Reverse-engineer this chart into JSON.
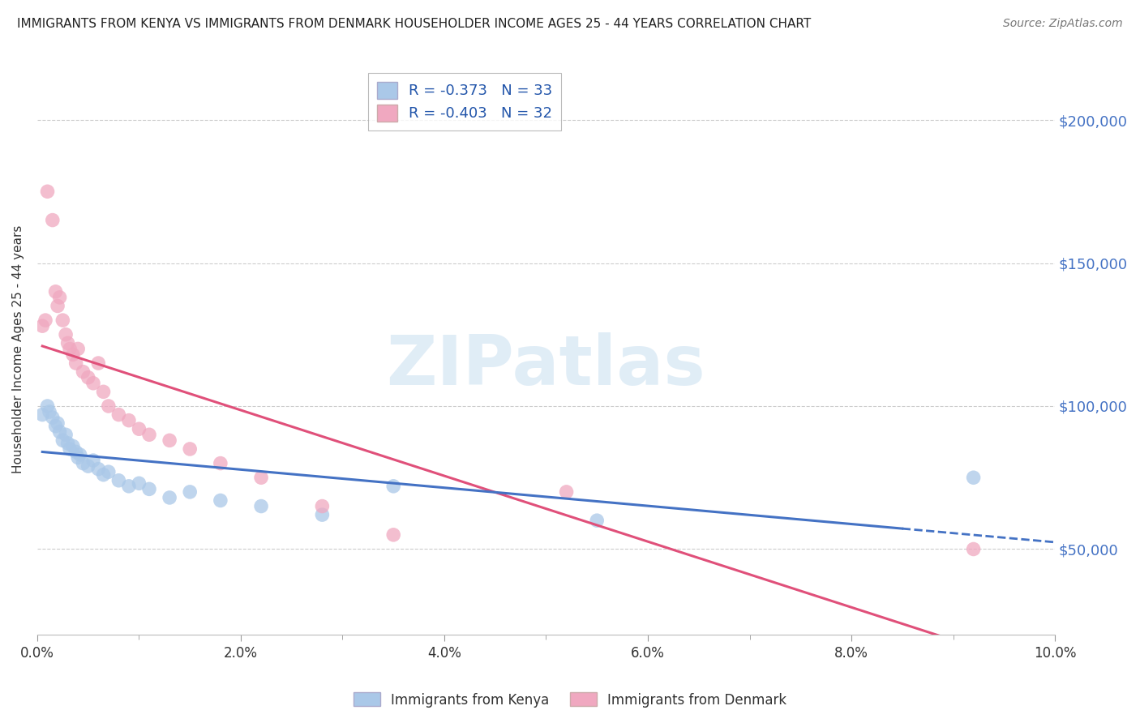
{
  "title": "IMMIGRANTS FROM KENYA VS IMMIGRANTS FROM DENMARK HOUSEHOLDER INCOME AGES 25 - 44 YEARS CORRELATION CHART",
  "source": "Source: ZipAtlas.com",
  "ylabel": "Householder Income Ages 25 - 44 years",
  "xlim": [
    0.0,
    10.0
  ],
  "ylim": [
    20000,
    220000
  ],
  "kenya_R": -0.373,
  "kenya_N": 33,
  "denmark_R": -0.403,
  "denmark_N": 32,
  "kenya_color": "#aac8e8",
  "denmark_color": "#f0a8c0",
  "kenya_line_color": "#4472c4",
  "denmark_line_color": "#e0507a",
  "kenya_x": [
    0.05,
    0.1,
    0.12,
    0.15,
    0.18,
    0.2,
    0.22,
    0.25,
    0.28,
    0.3,
    0.32,
    0.35,
    0.38,
    0.4,
    0.42,
    0.45,
    0.5,
    0.55,
    0.6,
    0.65,
    0.7,
    0.8,
    0.9,
    1.0,
    1.1,
    1.3,
    1.5,
    1.8,
    2.2,
    2.8,
    3.5,
    5.5,
    9.2
  ],
  "kenya_y": [
    97000,
    100000,
    98000,
    96000,
    93000,
    94000,
    91000,
    88000,
    90000,
    87000,
    85000,
    86000,
    84000,
    82000,
    83000,
    80000,
    79000,
    81000,
    78000,
    76000,
    77000,
    74000,
    72000,
    73000,
    71000,
    68000,
    70000,
    67000,
    65000,
    62000,
    72000,
    60000,
    75000
  ],
  "denmark_x": [
    0.05,
    0.08,
    0.1,
    0.15,
    0.18,
    0.2,
    0.22,
    0.25,
    0.28,
    0.3,
    0.32,
    0.35,
    0.38,
    0.4,
    0.45,
    0.5,
    0.55,
    0.6,
    0.65,
    0.7,
    0.8,
    0.9,
    1.0,
    1.1,
    1.3,
    1.5,
    1.8,
    2.2,
    2.8,
    3.5,
    5.2,
    9.2
  ],
  "denmark_y": [
    128000,
    130000,
    175000,
    165000,
    140000,
    135000,
    138000,
    130000,
    125000,
    122000,
    120000,
    118000,
    115000,
    120000,
    112000,
    110000,
    108000,
    115000,
    105000,
    100000,
    97000,
    95000,
    92000,
    90000,
    88000,
    85000,
    80000,
    75000,
    65000,
    55000,
    70000,
    50000
  ],
  "ytick_labels": [
    "$50,000",
    "$100,000",
    "$150,000",
    "$200,000"
  ],
  "ytick_values": [
    50000,
    100000,
    150000,
    200000
  ],
  "xtick_labels": [
    "0.0%",
    "2.0%",
    "4.0%",
    "6.0%",
    "8.0%",
    "10.0%"
  ],
  "xtick_values": [
    0,
    2,
    4,
    6,
    8,
    10
  ],
  "background_color": "#ffffff",
  "grid_color": "#cccccc",
  "right_ytick_color": "#4472c4",
  "legend_edge_color": "#aaaaaa",
  "title_fontsize": 11,
  "source_fontsize": 10,
  "axis_label_fontsize": 11,
  "tick_fontsize": 12,
  "legend_fontsize": 13,
  "scatter_size": 160,
  "scatter_alpha": 0.75
}
